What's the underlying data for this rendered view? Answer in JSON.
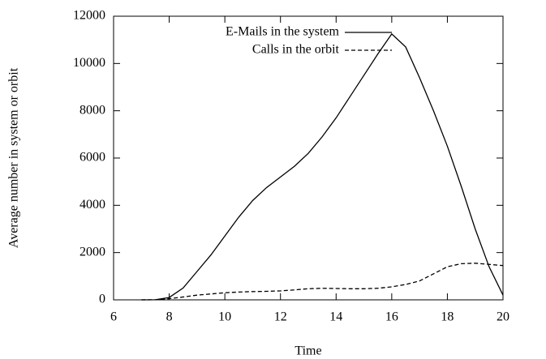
{
  "chart_data": {
    "type": "line",
    "xlabel": "Time",
    "ylabel": "Average number in system or orbit",
    "x": [
      7,
      7.5,
      8,
      8.5,
      9,
      9.5,
      10,
      10.5,
      11,
      11.5,
      12,
      12.5,
      13,
      13.5,
      14,
      14.5,
      15,
      15.5,
      16,
      16.5,
      17,
      17.5,
      18,
      18.5,
      19,
      19.5,
      20
    ],
    "series": [
      {
        "name": "E-Mails in the system",
        "color": "#000000",
        "style": "solid",
        "values": [
          0,
          5,
          100,
          500,
          1200,
          1900,
          2700,
          3500,
          4200,
          4750,
          5200,
          5650,
          6200,
          6900,
          7700,
          8600,
          9500,
          10400,
          11250,
          10700,
          9400,
          8000,
          6500,
          4800,
          3000,
          1400,
          200
        ]
      },
      {
        "name": "Calls in the orbit",
        "color": "#000000",
        "style": "dashed",
        "values": [
          0,
          5,
          50,
          120,
          200,
          250,
          300,
          330,
          350,
          360,
          380,
          420,
          470,
          490,
          480,
          470,
          470,
          490,
          550,
          650,
          800,
          1100,
          1400,
          1530,
          1550,
          1500,
          1450
        ]
      }
    ],
    "xlim": [
      6,
      20
    ],
    "xticks": [
      6,
      8,
      10,
      12,
      14,
      16,
      18,
      20
    ],
    "ylim": [
      0,
      12000
    ],
    "yticks": [
      0,
      2000,
      4000,
      6000,
      8000,
      10000,
      12000
    ],
    "legend": "top-right",
    "grid": false
  }
}
